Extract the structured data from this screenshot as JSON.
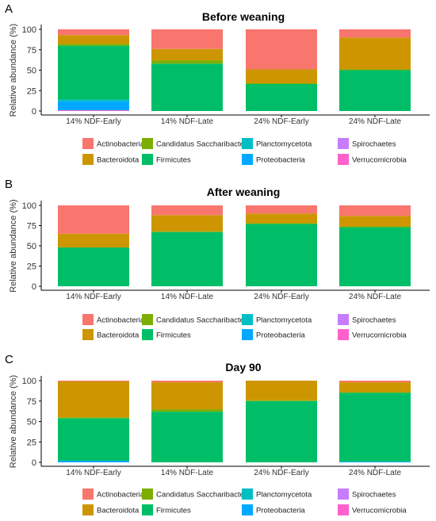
{
  "chart_data": [
    {
      "panel": "A",
      "type": "bar",
      "stacked": true,
      "title": "Before weaning",
      "ylabel": "Relative abundance (%)",
      "ylim": [
        0,
        100
      ],
      "yticks": [
        "0",
        "25",
        "50",
        "75",
        "100"
      ],
      "categories": [
        "14% NDF-Early",
        "14% NDF-Late",
        "24% NDF-Early",
        "24% NDF-Late"
      ],
      "series": [
        {
          "name": "Verrucomicrobia",
          "values": [
            1,
            0,
            0,
            0
          ]
        },
        {
          "name": "Spirochaetes",
          "values": [
            0,
            0,
            0,
            0
          ]
        },
        {
          "name": "Proteobacteria",
          "values": [
            11,
            0,
            0,
            0
          ]
        },
        {
          "name": "Planctomycetota",
          "values": [
            2,
            0,
            0,
            0
          ]
        },
        {
          "name": "Firmicutes",
          "values": [
            66,
            58,
            33,
            50
          ]
        },
        {
          "name": "Candidatus Saccharibacteria",
          "values": [
            2,
            4,
            1,
            1
          ]
        },
        {
          "name": "Bacteroidota",
          "values": [
            11,
            14,
            17,
            39
          ]
        },
        {
          "name": "Actinobacteria",
          "values": [
            7,
            24,
            49,
            10
          ]
        }
      ],
      "legend_order": [
        "Actinobacteria",
        "Bacteroidota",
        "Candidatus Saccharibacteria",
        "Firmicutes",
        "Planctomycetota",
        "Proteobacteria",
        "Spirochaetes",
        "Verrucomicrobia"
      ]
    },
    {
      "panel": "B",
      "type": "bar",
      "stacked": true,
      "title": "After weaning",
      "ylabel": "Relative abundance (%)",
      "ylim": [
        0,
        100
      ],
      "yticks": [
        "0",
        "25",
        "50",
        "75",
        "100"
      ],
      "categories": [
        "14% NDF-Early",
        "14% NDF-Late",
        "24% NDF-Early",
        "24% NDF-Late"
      ],
      "series": [
        {
          "name": "Verrucomicrobia",
          "values": [
            0,
            0,
            0,
            0
          ]
        },
        {
          "name": "Spirochaetes",
          "values": [
            0,
            0,
            0,
            0
          ]
        },
        {
          "name": "Proteobacteria",
          "values": [
            0,
            0,
            0,
            0
          ]
        },
        {
          "name": "Planctomycetota",
          "values": [
            0,
            0,
            0,
            0
          ]
        },
        {
          "name": "Firmicutes",
          "values": [
            48,
            67,
            77,
            73
          ]
        },
        {
          "name": "Candidatus Saccharibacteria",
          "values": [
            0,
            1,
            1,
            1
          ]
        },
        {
          "name": "Bacteroidota",
          "values": [
            17,
            20,
            12,
            13
          ]
        },
        {
          "name": "Actinobacteria",
          "values": [
            35,
            12,
            10,
            13
          ]
        }
      ],
      "legend_order": [
        "Actinobacteria",
        "Bacteroidota",
        "Candidatus Saccharibacteria",
        "Firmicutes",
        "Planctomycetota",
        "Proteobacteria",
        "Spirochaetes",
        "Verrucomicrobia"
      ]
    },
    {
      "panel": "C",
      "type": "bar",
      "stacked": true,
      "title": "Day 90",
      "ylabel": "Relative abundance (%)",
      "ylim": [
        0,
        100
      ],
      "yticks": [
        "0",
        "25",
        "50",
        "75",
        "100"
      ],
      "categories": [
        "14% NDF-Early",
        "14% NDF-Late",
        "24% NDF-Early",
        "24% NDF-Late"
      ],
      "series": [
        {
          "name": "Verrucomicrobia",
          "values": [
            0,
            0,
            0,
            0
          ]
        },
        {
          "name": "Spirochaetes",
          "values": [
            0,
            0,
            0,
            0
          ]
        },
        {
          "name": "Proteobacteria",
          "values": [
            2,
            0,
            0,
            1
          ]
        },
        {
          "name": "Planctomycetota",
          "values": [
            0,
            0,
            0,
            0
          ]
        },
        {
          "name": "Firmicutes",
          "values": [
            52,
            62,
            75,
            84
          ]
        },
        {
          "name": "Candidatus Saccharibacteria",
          "values": [
            1,
            3,
            1,
            1
          ]
        },
        {
          "name": "Bacteroidota",
          "values": [
            44,
            33,
            24,
            12
          ]
        },
        {
          "name": "Actinobacteria",
          "values": [
            1,
            2,
            0,
            2
          ]
        }
      ],
      "legend_order": [
        "Actinobacteria",
        "Bacteroidota",
        "Candidatus Saccharibacteria",
        "Firmicutes",
        "Planctomycetota",
        "Proteobacteria",
        "Spirochaetes",
        "Verrucomicrobia"
      ]
    }
  ],
  "colors": {
    "Actinobacteria": "#F8766D",
    "Bacteroidota": "#CD9600",
    "Candidatus Saccharibacteria": "#7CAE00",
    "Firmicutes": "#00BE67",
    "Planctomycetota": "#00BFC4",
    "Proteobacteria": "#00A9FF",
    "Spirochaetes": "#C77CFF",
    "Verrucomicrobia": "#FF61CC"
  }
}
